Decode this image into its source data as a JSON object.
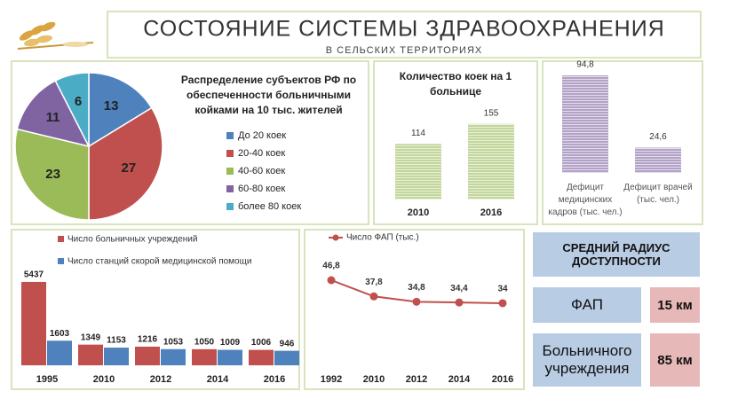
{
  "header": {
    "title": "СОСТОЯНИЕ СИСТЕМЫ ЗДРАВООХРАНЕНИЯ",
    "subtitle": "В СЕЛЬСКИХ ТЕРРИТОРИЯХ"
  },
  "chart_data": [
    {
      "type": "pie",
      "title": "Распределение субъектов РФ по обеспеченности больничными койками на 10 тыс. жителей",
      "categories": [
        "До 20 коек",
        "20-40 коек",
        "40-60 коек",
        "60-80 коек",
        "более 80 коек"
      ],
      "values": [
        13,
        27,
        23,
        11,
        6
      ],
      "colors": [
        "#4f81bd",
        "#c0504d",
        "#9bbb59",
        "#8064a2",
        "#4bacc6"
      ],
      "legend": "right"
    },
    {
      "type": "bar",
      "title": "Количество коек на 1 больнице",
      "categories": [
        "2010",
        "2016"
      ],
      "values": [
        114,
        155
      ],
      "color": "#c3d69b"
    },
    {
      "type": "bar",
      "categories": [
        "Дефицит медицинских кадров (тыс. чел.)",
        "Дефицит врачей (тыс. чел.)"
      ],
      "values": [
        94.8,
        24.6
      ],
      "value_labels": [
        "94,8",
        "24,6"
      ],
      "color": "#b3a2c7"
    },
    {
      "type": "grouped_bar",
      "categories": [
        "1995",
        "2010",
        "2012",
        "2014",
        "2016"
      ],
      "legend": "top-left",
      "series": [
        {
          "name": "Число больничных учреждений",
          "color": "#c0504d",
          "values": [
            5437,
            1349,
            1216,
            1050,
            1006
          ]
        },
        {
          "name": "Число станций скорой медицинской помощи",
          "color": "#4f81bd",
          "values": [
            1603,
            1153,
            1053,
            1009,
            946
          ]
        }
      ]
    },
    {
      "type": "line",
      "categories": [
        "1992",
        "2010",
        "2012",
        "2014",
        "2016"
      ],
      "legend": "top-left",
      "series": [
        {
          "name": "Число ФАП (тыс.)",
          "color": "#c0504d",
          "values": [
            46.8,
            37.8,
            34.8,
            34.4,
            34
          ],
          "value_labels": [
            "46,8",
            "37,8",
            "34,8",
            "34,4",
            "34"
          ]
        }
      ]
    }
  ],
  "radius": {
    "title": "СРЕДНИЙ РАДИУС ДОСТУПНОСТИ",
    "rows": [
      {
        "label": "ФАП",
        "value": "15 км"
      },
      {
        "label": "Больничного учреждения",
        "value": "85 км"
      }
    ]
  }
}
